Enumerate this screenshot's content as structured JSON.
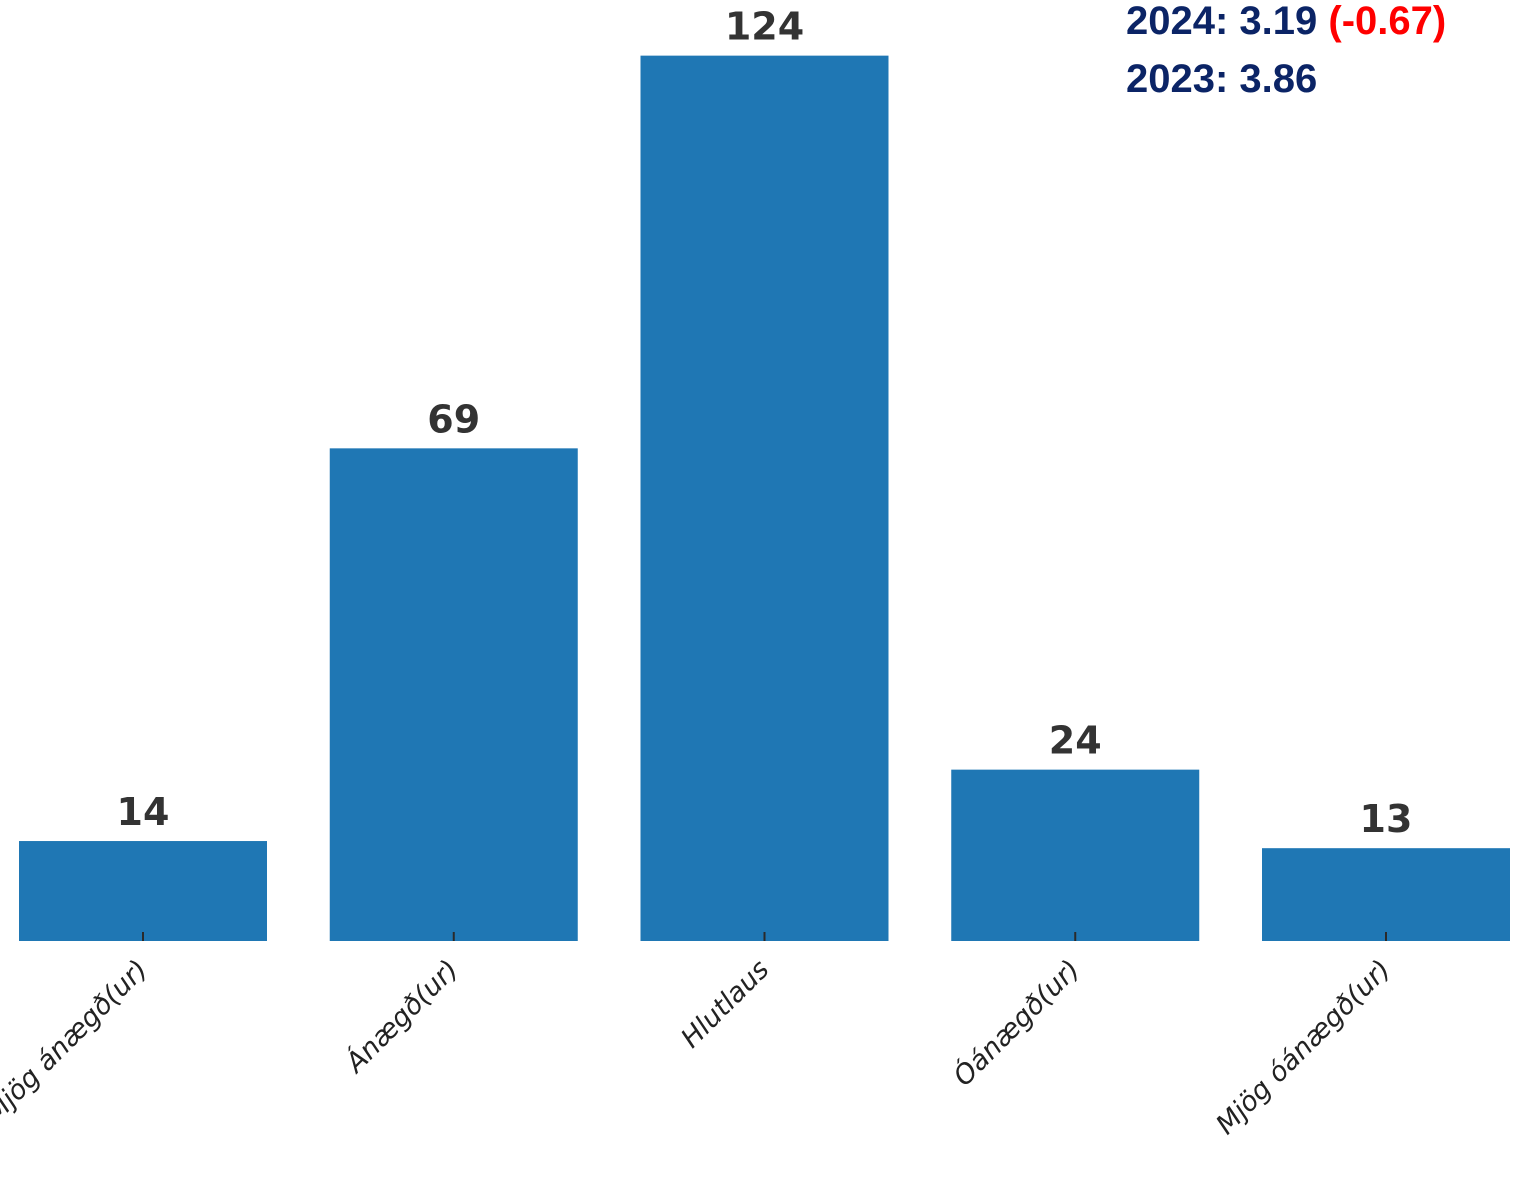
{
  "chart_data": {
    "type": "bar",
    "categories": [
      "Mjög ánægð(ur)",
      "Ánægð(ur)",
      "Hlutlaus",
      "Óánægð(ur)",
      "Mjög óánægð(ur)"
    ],
    "values": [
      14,
      69,
      124,
      24,
      13
    ],
    "data_labels": [
      "14",
      "69",
      "124",
      "24",
      "13"
    ],
    "title": "",
    "xlabel": "",
    "ylabel": "",
    "ylim": [
      0,
      130
    ],
    "grid": false,
    "bar_color": "#1f77b4",
    "label_color": "#333333"
  },
  "annotation": {
    "line_2024_label": "2024: 3.19",
    "line_2024_delta": "(-0.67)",
    "line_2023_label": "2023: 3.86",
    "text_color": "#0b2466",
    "delta_color": "#ff0000"
  }
}
